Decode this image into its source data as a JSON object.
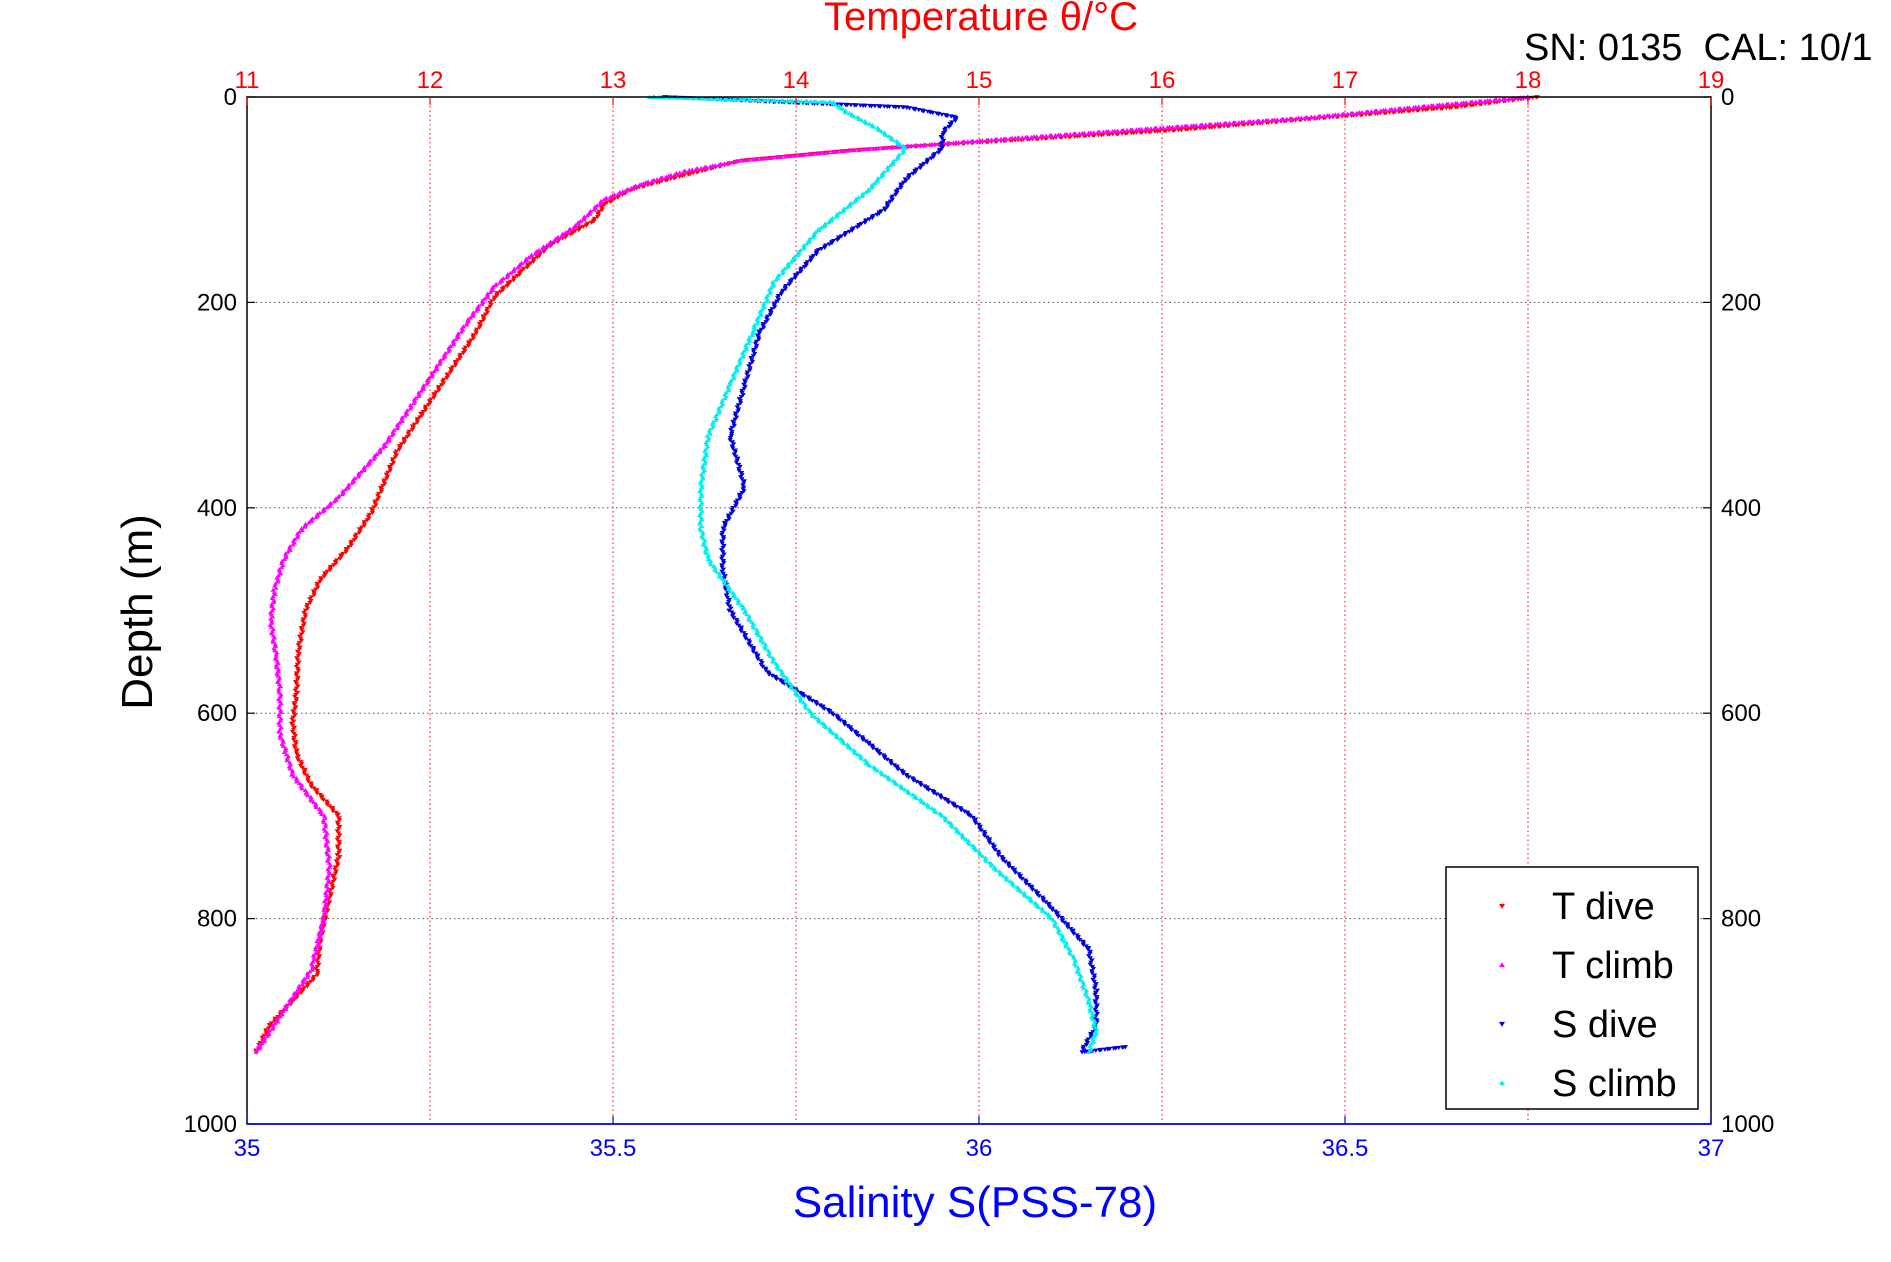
{
  "colors": {
    "temperature_axis": "#ff0000",
    "salinity_axis": "#0000ff",
    "t_dive": "#ff0000",
    "t_climb": "#ff00ff",
    "s_dive": "#0000dd",
    "s_climb": "#00eeee",
    "grid": "#555555",
    "text": "#000000"
  },
  "chart_data": {
    "type": "scatter",
    "top_axis": {
      "label": "Temperature θ/°C",
      "range": [
        11,
        19
      ],
      "ticks": [
        "11",
        "12",
        "13",
        "14",
        "15",
        "16",
        "17",
        "18",
        "19"
      ]
    },
    "bottom_axis": {
      "label": "Salinity S(PSS-78)",
      "range": [
        35,
        37
      ],
      "ticks": [
        "35",
        "35.5",
        "36",
        "36.5",
        "37"
      ]
    },
    "y_axis": {
      "label": "Depth (m)",
      "range": [
        0,
        1000
      ],
      "reversed": true,
      "ticks": [
        "0",
        "200",
        "400",
        "600",
        "800",
        "1000"
      ]
    },
    "annotation": "SN: 0135  CAL: 10/1",
    "grid": true,
    "legend_position": "bottom-right",
    "legend": [
      "T dive",
      "T climb",
      "S dive",
      "S climb"
    ],
    "series": [
      {
        "name": "T dive",
        "axis": "temperature",
        "marker": "triangle-down",
        "points": [
          [
            18.05,
            0
          ],
          [
            17.6,
            10
          ],
          [
            16.9,
            20
          ],
          [
            16.1,
            32
          ],
          [
            15.2,
            42
          ],
          [
            14.3,
            52
          ],
          [
            13.7,
            62
          ],
          [
            13.35,
            78
          ],
          [
            13.1,
            90
          ],
          [
            12.95,
            105
          ],
          [
            12.9,
            120
          ],
          [
            12.65,
            145
          ],
          [
            12.5,
            170
          ],
          [
            12.35,
            195
          ],
          [
            12.25,
            230
          ],
          [
            12.1,
            270
          ],
          [
            11.95,
            310
          ],
          [
            11.82,
            345
          ],
          [
            11.75,
            375
          ],
          [
            11.68,
            405
          ],
          [
            11.55,
            440
          ],
          [
            11.4,
            470
          ],
          [
            11.32,
            500
          ],
          [
            11.28,
            540
          ],
          [
            11.27,
            580
          ],
          [
            11.25,
            610
          ],
          [
            11.27,
            640
          ],
          [
            11.35,
            670
          ],
          [
            11.5,
            700
          ],
          [
            11.5,
            740
          ],
          [
            11.45,
            780
          ],
          [
            11.4,
            820
          ],
          [
            11.38,
            855
          ],
          [
            11.25,
            880
          ],
          [
            11.12,
            905
          ],
          [
            11.05,
            930
          ]
        ]
      },
      {
        "name": "T climb",
        "axis": "temperature",
        "marker": "triangle-up",
        "points": [
          [
            18.0,
            0
          ],
          [
            17.5,
            8
          ],
          [
            16.8,
            20
          ],
          [
            16.0,
            30
          ],
          [
            15.2,
            40
          ],
          [
            14.3,
            52
          ],
          [
            13.7,
            62
          ],
          [
            13.4,
            72
          ],
          [
            13.15,
            85
          ],
          [
            12.95,
            100
          ],
          [
            12.8,
            125
          ],
          [
            12.55,
            155
          ],
          [
            12.35,
            185
          ],
          [
            12.2,
            220
          ],
          [
            12.05,
            260
          ],
          [
            11.9,
            300
          ],
          [
            11.75,
            340
          ],
          [
            11.5,
            390
          ],
          [
            11.3,
            420
          ],
          [
            11.2,
            450
          ],
          [
            11.15,
            480
          ],
          [
            11.13,
            510
          ],
          [
            11.16,
            545
          ],
          [
            11.18,
            580
          ],
          [
            11.18,
            620
          ],
          [
            11.25,
            660
          ],
          [
            11.42,
            700
          ],
          [
            11.45,
            750
          ],
          [
            11.42,
            800
          ],
          [
            11.35,
            850
          ],
          [
            11.2,
            890
          ],
          [
            11.05,
            930
          ]
        ]
      },
      {
        "name": "S dive",
        "axis": "salinity",
        "marker": "triangle-down",
        "points": [
          [
            35.57,
            0
          ],
          [
            35.9,
            10
          ],
          [
            35.97,
            20
          ],
          [
            35.95,
            35
          ],
          [
            35.95,
            50
          ],
          [
            35.9,
            80
          ],
          [
            35.87,
            110
          ],
          [
            35.78,
            150
          ],
          [
            35.73,
            190
          ],
          [
            35.7,
            230
          ],
          [
            35.68,
            280
          ],
          [
            35.66,
            330
          ],
          [
            35.68,
            380
          ],
          [
            35.65,
            420
          ],
          [
            35.65,
            460
          ],
          [
            35.66,
            500
          ],
          [
            35.71,
            560
          ],
          [
            35.8,
            600
          ],
          [
            35.85,
            630
          ],
          [
            35.9,
            660
          ],
          [
            35.99,
            700
          ],
          [
            36.03,
            740
          ],
          [
            36.1,
            790
          ],
          [
            36.15,
            830
          ],
          [
            36.16,
            870
          ],
          [
            36.16,
            905
          ],
          [
            36.14,
            930
          ],
          [
            36.2,
            925
          ]
        ]
      },
      {
        "name": "S climb",
        "axis": "salinity",
        "marker": "triangle-up",
        "points": [
          [
            35.55,
            0
          ],
          [
            35.8,
            5
          ],
          [
            35.82,
            15
          ],
          [
            35.86,
            30
          ],
          [
            35.9,
            50
          ],
          [
            35.85,
            90
          ],
          [
            35.78,
            130
          ],
          [
            35.72,
            180
          ],
          [
            35.69,
            230
          ],
          [
            35.66,
            280
          ],
          [
            35.63,
            330
          ],
          [
            35.62,
            380
          ],
          [
            35.62,
            420
          ],
          [
            35.63,
            450
          ],
          [
            35.68,
            500
          ],
          [
            35.72,
            550
          ],
          [
            35.77,
            600
          ],
          [
            35.85,
            650
          ],
          [
            35.95,
            700
          ],
          [
            36.02,
            750
          ],
          [
            36.1,
            800
          ],
          [
            36.13,
            840
          ],
          [
            36.15,
            880
          ],
          [
            36.16,
            910
          ],
          [
            36.15,
            930
          ]
        ]
      }
    ]
  }
}
